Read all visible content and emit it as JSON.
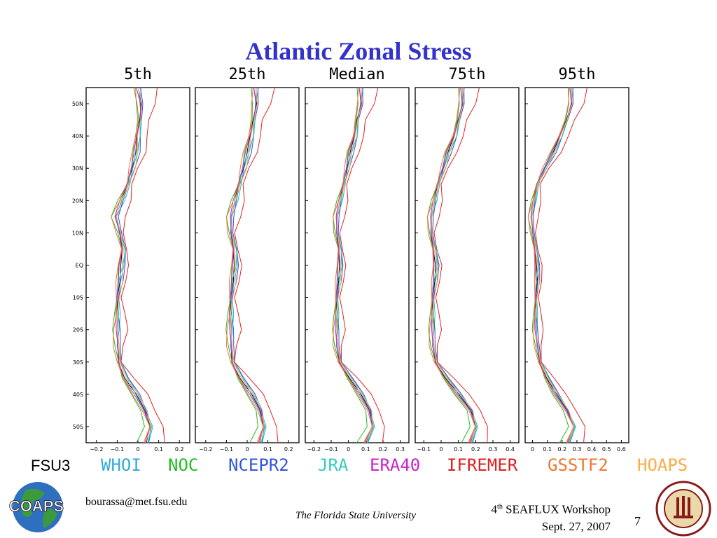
{
  "title": "Atlantic Zonal Stress",
  "chart_data": {
    "type": "line",
    "ylabels": [
      "50N",
      "40N",
      "30N",
      "20N",
      "10N",
      "EQ",
      "10S",
      "20S",
      "30S",
      "40S",
      "50S"
    ],
    "lat_ticks": [
      50,
      40,
      30,
      20,
      10,
      0,
      -10,
      -20,
      -30,
      -40,
      -50
    ],
    "ylim": [
      -55,
      55
    ],
    "panels": [
      {
        "title": "5th",
        "xlim": [
          -0.25,
          0.25
        ],
        "xticks": [
          -0.2,
          -0.1,
          0,
          0.1,
          0.2
        ],
        "xticklabels": [
          "−0.2",
          "−0.1",
          "0",
          "0.1",
          "0.2"
        ]
      },
      {
        "title": "25th",
        "xlim": [
          -0.25,
          0.25
        ],
        "xticks": [
          -0.2,
          -0.1,
          0,
          0.1,
          0.2
        ],
        "xticklabels": [
          "−0.2",
          "−0.1",
          "0",
          "0.1",
          "0.2"
        ]
      },
      {
        "title": "Median",
        "xlim": [
          -0.25,
          0.35
        ],
        "xticks": [
          -0.2,
          -0.1,
          0,
          0.1,
          0.2,
          0.3
        ],
        "xticklabels": [
          "−0.2",
          "−0.1",
          "0",
          "0.1",
          "0.2",
          "0.3"
        ]
      },
      {
        "title": "75th",
        "xlim": [
          -0.15,
          0.45
        ],
        "xticks": [
          -0.1,
          0,
          0.1,
          0.2,
          0.3,
          0.4
        ],
        "xticklabels": [
          "−0.1",
          "0",
          "0.1",
          "0.2",
          "0.3",
          "0.4"
        ]
      },
      {
        "title": "95th",
        "xlim": [
          -0.05,
          0.65
        ],
        "xticks": [
          0,
          0.1,
          0.2,
          0.3,
          0.4,
          0.5,
          0.6
        ],
        "xticklabels": [
          "0",
          "0.1",
          "0.2",
          "0.3",
          "0.4",
          "0.5",
          "0.6"
        ]
      }
    ],
    "lat": [
      55,
      50,
      45,
      40,
      35,
      30,
      25,
      20,
      15,
      10,
      5,
      0,
      -5,
      -10,
      -15,
      -20,
      -25,
      -30,
      -35,
      -40,
      -45,
      -50,
      -55
    ],
    "profiles": {
      "5th": [
        0.0,
        0.01,
        0.01,
        0.0,
        -0.01,
        -0.03,
        -0.05,
        -0.08,
        -0.11,
        -0.09,
        -0.07,
        -0.08,
        -0.09,
        -0.1,
        -0.1,
        -0.1,
        -0.1,
        -0.09,
        -0.06,
        -0.01,
        0.03,
        0.06,
        0.04
      ],
      "25th": [
        0.04,
        0.04,
        0.03,
        0.02,
        0.0,
        -0.02,
        -0.04,
        -0.06,
        -0.08,
        -0.08,
        -0.06,
        -0.06,
        -0.07,
        -0.08,
        -0.08,
        -0.08,
        -0.08,
        -0.07,
        -0.03,
        0.02,
        0.06,
        0.08,
        0.06
      ],
      "Median": [
        0.07,
        0.07,
        0.05,
        0.04,
        0.01,
        -0.01,
        -0.03,
        -0.05,
        -0.07,
        -0.07,
        -0.05,
        -0.05,
        -0.06,
        -0.07,
        -0.07,
        -0.07,
        -0.07,
        -0.05,
        0.01,
        0.07,
        0.12,
        0.14,
        0.1
      ],
      "75th": [
        0.12,
        0.12,
        0.1,
        0.08,
        0.04,
        0.01,
        -0.02,
        -0.04,
        -0.06,
        -0.06,
        -0.04,
        -0.03,
        -0.04,
        -0.05,
        -0.05,
        -0.05,
        -0.05,
        -0.03,
        0.03,
        0.1,
        0.17,
        0.2,
        0.17
      ],
      "95th": [
        0.26,
        0.26,
        0.23,
        0.19,
        0.14,
        0.08,
        0.03,
        0.01,
        -0.01,
        0.0,
        0.02,
        0.03,
        0.03,
        0.02,
        0.02,
        0.02,
        0.03,
        0.05,
        0.1,
        0.16,
        0.23,
        0.28,
        0.24
      ]
    },
    "series": [
      {
        "name": "FSU3",
        "color": "#000000",
        "offset": 0.0,
        "wiggle": 0.004
      },
      {
        "name": "WHOI",
        "color": "#33aadd",
        "offset": 0.008,
        "wiggle": 0.006
      },
      {
        "name": "NOC",
        "color": "#22bb22",
        "offset": -0.01,
        "wiggle": 0.008
      },
      {
        "name": "NCEPR2",
        "color": "#3355dd",
        "offset": 0.012,
        "wiggle": 0.006
      },
      {
        "name": "JRA",
        "color": "#33ccbb",
        "offset": 0.004,
        "wiggle": 0.005
      },
      {
        "name": "ERA40",
        "color": "#cc22cc",
        "offset": -0.004,
        "wiggle": 0.005
      },
      {
        "name": "IFREMER",
        "color": "#dd2222",
        "offset": 0.03,
        "wiggle": 0.015
      },
      {
        "name": "GSSTF2",
        "color": "#ee7733",
        "offset": -0.012,
        "wiggle": 0.007
      },
      {
        "name": "HOAPS",
        "color": "#ffaa44",
        "offset": 0.006,
        "wiggle": 0.007
      }
    ]
  },
  "footer": {
    "email": "bourassa@met.fsu.edu",
    "university": "The Florida State University",
    "workshop_num": "4",
    "workshop_sup": "th",
    "workshop_rest": " SEAFLUX Workshop",
    "date": "Sept. 27, 2007",
    "page": "7",
    "logo_text": "COAPS",
    "seal_text": "FLORIDA STATE UNIVERSITY",
    "seal_year": "1851"
  }
}
